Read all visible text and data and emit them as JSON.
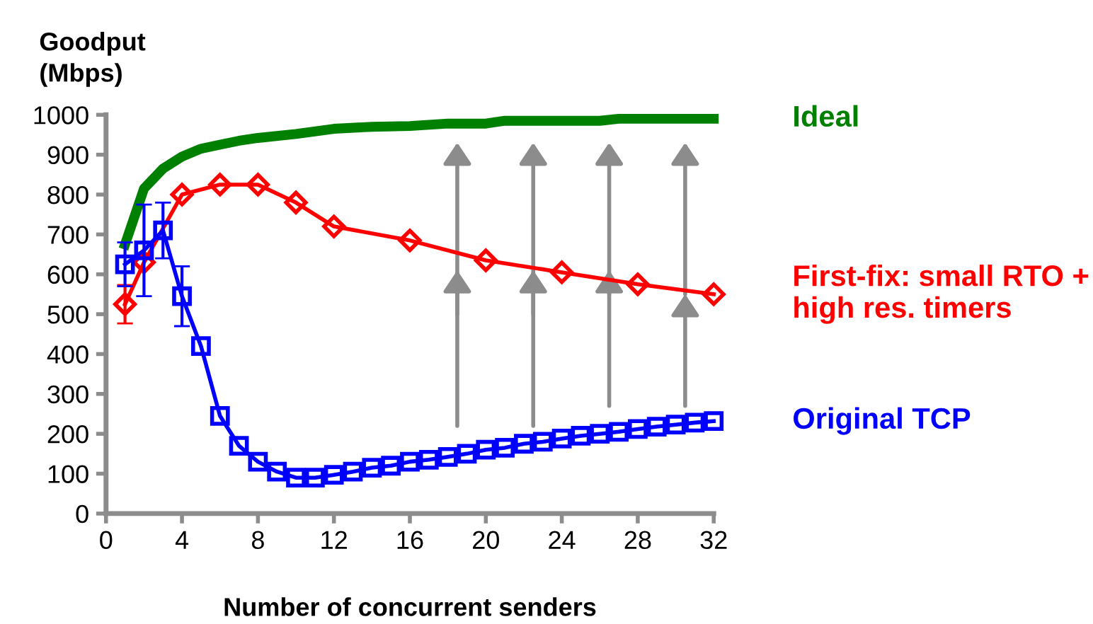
{
  "chart_data": {
    "type": "line",
    "ylabel": "Goodput\n(Mbps)",
    "xlabel": "Number of concurrent senders",
    "xlim": [
      0,
      32
    ],
    "xticks": [
      0,
      4,
      8,
      12,
      16,
      20,
      24,
      28,
      32
    ],
    "ylim": [
      0,
      1000
    ],
    "yticks": [
      0,
      100,
      200,
      300,
      400,
      500,
      600,
      700,
      800,
      900,
      1000
    ],
    "grid": false,
    "legend": false,
    "series": [
      {
        "name": "Ideal",
        "color": "#008000",
        "marker": "none",
        "x": [
          1,
          2,
          3,
          4,
          5,
          6,
          7,
          8,
          10,
          12,
          14,
          16,
          18,
          20,
          21,
          24,
          26,
          27,
          32
        ],
        "values": [
          675,
          815,
          865,
          895,
          915,
          925,
          935,
          942,
          952,
          965,
          970,
          972,
          978,
          978,
          985,
          985,
          985,
          990,
          990
        ]
      },
      {
        "name": "First-fix: small RTO +\nhigh res. timers",
        "color": "#ff0000",
        "marker": "diamond",
        "x": [
          1,
          2,
          4,
          6,
          8,
          10,
          12,
          16,
          20,
          24,
          28,
          32
        ],
        "values": [
          525,
          630,
          800,
          825,
          825,
          780,
          720,
          685,
          635,
          605,
          575,
          550
        ],
        "errors": [
          48,
          null,
          null,
          null,
          null,
          null,
          null,
          null,
          null,
          null,
          null,
          null
        ]
      },
      {
        "name": "Original TCP",
        "color": "#0000ff",
        "marker": "square",
        "x": [
          1,
          2,
          3,
          4,
          5,
          6,
          7,
          8,
          9,
          10,
          11,
          12,
          13,
          14,
          15,
          16,
          17,
          18,
          19,
          20,
          21,
          22,
          23,
          24,
          25,
          26,
          27,
          28,
          29,
          30,
          31,
          32
        ],
        "values": [
          625,
          660,
          710,
          545,
          420,
          245,
          170,
          130,
          105,
          90,
          90,
          97,
          105,
          115,
          120,
          130,
          135,
          142,
          150,
          160,
          165,
          175,
          180,
          188,
          195,
          200,
          205,
          212,
          218,
          223,
          228,
          232
        ],
        "errors": [
          55,
          115,
          70,
          75,
          null,
          null,
          null,
          null,
          null,
          null,
          null,
          null,
          null,
          null,
          null,
          null,
          null,
          null,
          null,
          null,
          null,
          null,
          null,
          null,
          null,
          null,
          null,
          null,
          null,
          null,
          null,
          null
        ]
      }
    ]
  }
}
